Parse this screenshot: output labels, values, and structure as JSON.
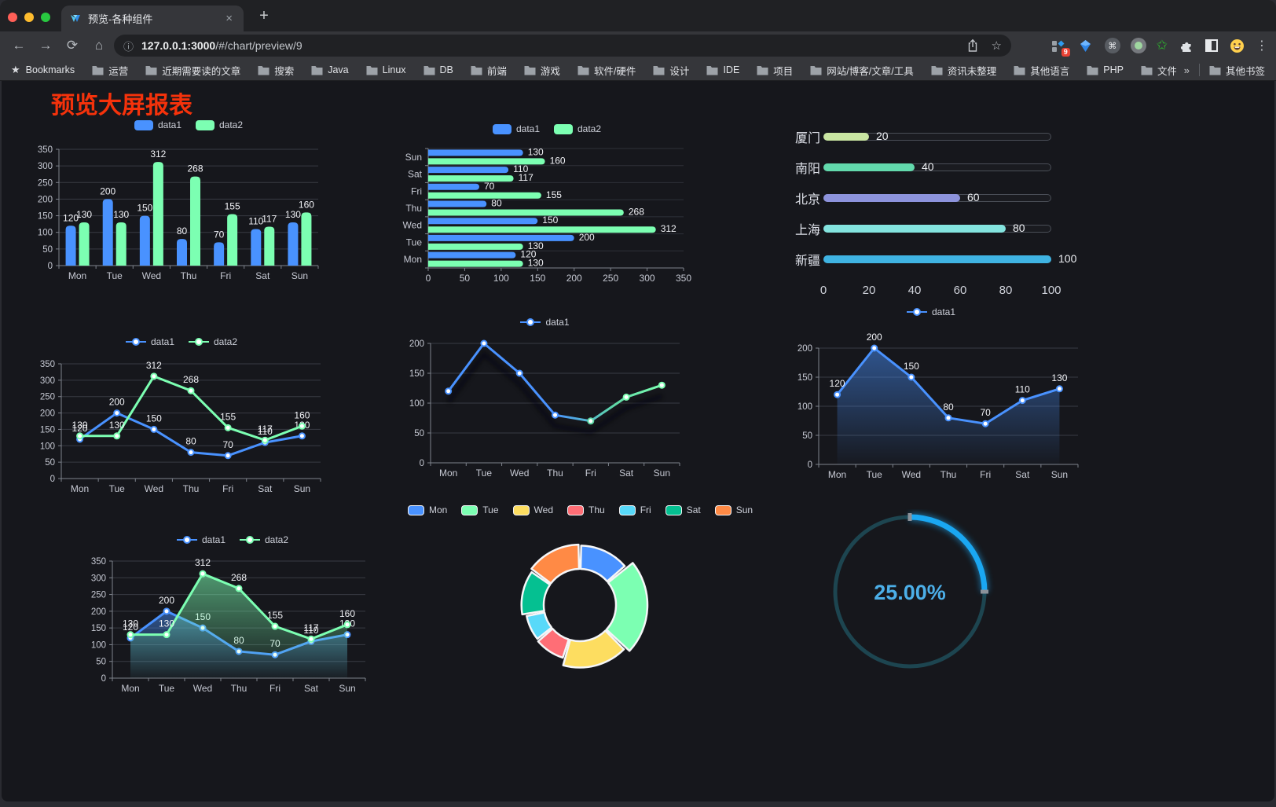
{
  "browser": {
    "window_controls": {
      "close": "#ff5f57",
      "minimize": "#febc2e",
      "zoom": "#28c840"
    },
    "tab": {
      "title": "预览-各种组件",
      "close": "×",
      "new_tab": "+"
    },
    "nav": {
      "back": "←",
      "forward": "→",
      "reload": "⟳",
      "home": "⌂",
      "info": "ⓘ",
      "bookmark_star": "☆",
      "menu": "⋮"
    },
    "url": {
      "host": "127.0.0.1:3000",
      "path": "/#/chart/preview/9"
    },
    "extensions_badge": "9",
    "bookmarks": {
      "star": "★",
      "label": "Bookmarks",
      "items": [
        "运营",
        "近期需要读的文章",
        "搜索",
        "Java",
        "Linux",
        "DB",
        "前端",
        "游戏",
        "软件/硬件",
        "设计",
        "IDE",
        "项目",
        "网站/博客/文章/工具",
        "资讯未整理",
        "其他语言",
        "PHP",
        "文件服务器"
      ],
      "overflow": "»",
      "other": "其他书签"
    }
  },
  "page": {
    "title": "预览大屏报表",
    "title_color": "#f5320b"
  },
  "chart_data": [
    {
      "id": "bar_vertical",
      "type": "bar",
      "categories": [
        "Mon",
        "Tue",
        "Wed",
        "Thu",
        "Fri",
        "Sat",
        "Sun"
      ],
      "series": [
        {
          "name": "data1",
          "color": "#4992ff",
          "values": [
            120,
            200,
            150,
            80,
            70,
            110,
            130
          ]
        },
        {
          "name": "data2",
          "color": "#7cffb2",
          "values": [
            130,
            130,
            312,
            268,
            155,
            117,
            160
          ]
        }
      ],
      "ylim": [
        0,
        350
      ],
      "ytick_step": 50,
      "grid": true,
      "legend_position": "top",
      "value_labels": true
    },
    {
      "id": "bar_horizontal",
      "type": "bar-horizontal",
      "categories": [
        "Mon",
        "Tue",
        "Wed",
        "Thu",
        "Fri",
        "Sat",
        "Sun"
      ],
      "series": [
        {
          "name": "data1",
          "color": "#4992ff",
          "values": [
            120,
            200,
            150,
            80,
            70,
            110,
            130
          ]
        },
        {
          "name": "data2",
          "color": "#7cffb2",
          "values": [
            130,
            130,
            312,
            268,
            155,
            117,
            160
          ]
        }
      ],
      "xlim": [
        0,
        350
      ],
      "xtick_step": 50,
      "legend_position": "top",
      "value_labels": true
    },
    {
      "id": "city_progress",
      "type": "bar-horizontal",
      "categories": [
        "厦门",
        "南阳",
        "北京",
        "上海",
        "新疆"
      ],
      "values": [
        20,
        40,
        60,
        80,
        100
      ],
      "colors": [
        "#c9e6a2",
        "#62d9ac",
        "#8d93dc",
        "#84e4df",
        "#3fb3e2"
      ],
      "xlim": [
        0,
        100
      ],
      "xticks": [
        0,
        20,
        40,
        60,
        80,
        100
      ],
      "value_labels": true
    },
    {
      "id": "line_two_series",
      "type": "line",
      "categories": [
        "Mon",
        "Tue",
        "Wed",
        "Thu",
        "Fri",
        "Sat",
        "Sun"
      ],
      "series": [
        {
          "name": "data1",
          "color": "#4992ff",
          "values": [
            120,
            200,
            150,
            80,
            70,
            110,
            130
          ]
        },
        {
          "name": "data2",
          "color": "#7cffb2",
          "values": [
            130,
            130,
            312,
            268,
            155,
            117,
            160
          ]
        }
      ],
      "ylim": [
        0,
        350
      ],
      "ytick_step": 50,
      "value_labels": true
    },
    {
      "id": "line_gradient",
      "type": "line",
      "categories": [
        "Mon",
        "Tue",
        "Wed",
        "Thu",
        "Fri",
        "Sat",
        "Sun"
      ],
      "series": [
        {
          "name": "data1",
          "color": "#4992ff",
          "gradient": [
            "#4992ff",
            "#5fd9a6",
            "#7cffb2"
          ],
          "values": [
            120,
            200,
            150,
            80,
            70,
            110,
            130
          ]
        }
      ],
      "ylim": [
        0,
        200
      ],
      "ytick_step": 50,
      "value_labels": false,
      "shadow": true
    },
    {
      "id": "line_area",
      "type": "area",
      "categories": [
        "Mon",
        "Tue",
        "Wed",
        "Thu",
        "Fri",
        "Sat",
        "Sun"
      ],
      "series": [
        {
          "name": "data1",
          "color": "#4992ff",
          "values": [
            120,
            200,
            150,
            80,
            70,
            110,
            130
          ]
        }
      ],
      "ylim": [
        0,
        200
      ],
      "ytick_step": 50,
      "value_labels": true
    },
    {
      "id": "area_two_series",
      "type": "area",
      "categories": [
        "Mon",
        "Tue",
        "Wed",
        "Thu",
        "Fri",
        "Sat",
        "Sun"
      ],
      "series": [
        {
          "name": "data1",
          "color": "#4992ff",
          "values": [
            120,
            200,
            150,
            80,
            70,
            110,
            130
          ]
        },
        {
          "name": "data2",
          "color": "#7cffb2",
          "values": [
            130,
            130,
            312,
            268,
            155,
            117,
            160
          ]
        }
      ],
      "ylim": [
        0,
        350
      ],
      "ytick_step": 50,
      "value_labels": true
    },
    {
      "id": "donut",
      "type": "pie",
      "rose": true,
      "categories": [
        "Mon",
        "Tue",
        "Wed",
        "Thu",
        "Fri",
        "Sat",
        "Sun"
      ],
      "values": [
        120,
        200,
        150,
        80,
        70,
        110,
        130
      ],
      "colors": [
        "#4992ff",
        "#7cffb2",
        "#fddd60",
        "#ff6e76",
        "#58d9f9",
        "#05c091",
        "#ff8a45"
      ],
      "legend_position": "top"
    },
    {
      "id": "gauge",
      "type": "gauge",
      "percent": 25,
      "label": "25.00%",
      "color": "#1aa7f2",
      "track_color": "#1d4550",
      "text_color": "#4cafe8"
    }
  ]
}
